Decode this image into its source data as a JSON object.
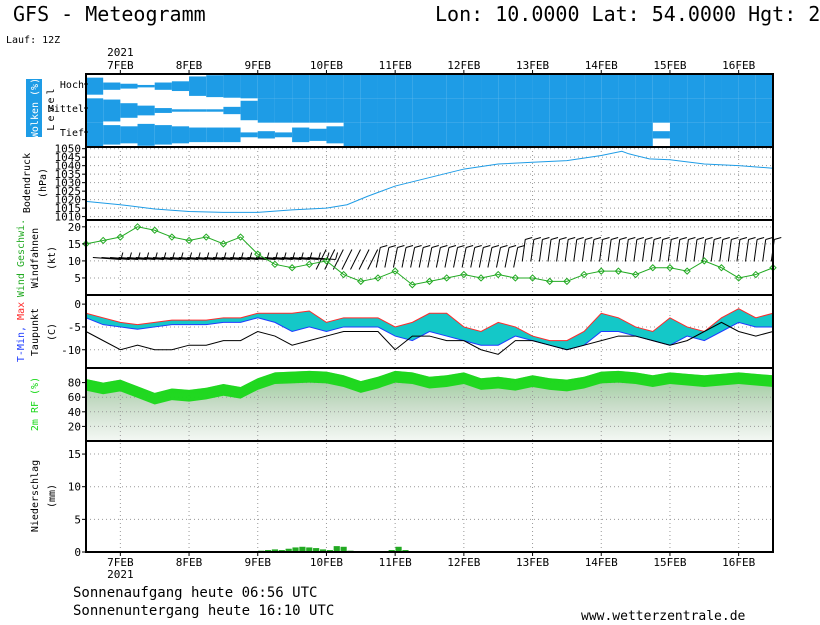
{
  "header": {
    "title": "GFS - Meteogramm",
    "location": "Lon: 10.0000 Lat: 54.0000 Hgt: 2",
    "run": "Lauf: 12Z"
  },
  "year": "2021",
  "date_labels": [
    "7FEB",
    "8FEB",
    "9FEB",
    "10FEB",
    "11FEB",
    "12FEB",
    "13FEB",
    "14FEB",
    "15FEB",
    "16FEB"
  ],
  "footer": {
    "sunrise": "Sonnenaufgang heute 06:56 UTC",
    "sunset": "Sonnenuntergang heute 16:10 UTC",
    "website": "www.wetterzentrale.de"
  },
  "colors": {
    "cloud": "#1e9ce6",
    "pressure": "#1e9ce6",
    "wind": "#22aa22",
    "tmin": "#1e3cff",
    "tmax": "#ff2a2a",
    "temp_band": "#14c8c8",
    "humidity": "#18d818",
    "precip": "#22aa22",
    "grid": "#999999"
  },
  "chart_data": [
    {
      "type": "heatmap",
      "name": "clouds",
      "ylabel": "Wolken (%)",
      "ylabel2": "Level",
      "levels": [
        "Hoch",
        "Mittel",
        "Tief"
      ],
      "x_start_day": 6.5,
      "step_hours": 6,
      "coverage_pct": {
        "Hoch": [
          70,
          30,
          20,
          10,
          30,
          40,
          80,
          90,
          95,
          100,
          100,
          100,
          100,
          100,
          100,
          100,
          100,
          100,
          100,
          100,
          100,
          100,
          100,
          100,
          100,
          100,
          100,
          100,
          100,
          100,
          100,
          100,
          100,
          100,
          100,
          100,
          100,
          100,
          100,
          100
        ],
        "Mittel": [
          100,
          90,
          60,
          40,
          20,
          10,
          10,
          10,
          30,
          80,
          100,
          100,
          100,
          100,
          100,
          100,
          100,
          100,
          100,
          100,
          100,
          100,
          100,
          100,
          100,
          100,
          100,
          100,
          100,
          100,
          100,
          100,
          100,
          100,
          100,
          100,
          100,
          100,
          100,
          100
        ],
        "Tief": [
          100,
          80,
          70,
          90,
          80,
          70,
          60,
          60,
          60,
          20,
          30,
          20,
          60,
          50,
          70,
          100,
          100,
          100,
          100,
          100,
          100,
          100,
          100,
          100,
          100,
          100,
          100,
          100,
          100,
          100,
          100,
          100,
          100,
          30,
          100,
          100,
          100,
          100,
          100,
          100
        ]
      }
    },
    {
      "type": "line",
      "name": "pressure",
      "ylabel": "Bodendruck",
      "ylabel2": "(hPa)",
      "yticks": [
        1010,
        1015,
        1020,
        1025,
        1030,
        1035,
        1040,
        1045,
        1050
      ],
      "ylim": [
        1008,
        1051
      ],
      "x": [
        6.5,
        7.0,
        7.5,
        8.0,
        8.5,
        9.0,
        9.5,
        10.0,
        10.3,
        10.6,
        11.0,
        11.5,
        12.0,
        12.5,
        13.0,
        13.5,
        14.0,
        14.3,
        14.4,
        14.7,
        15.0,
        15.5,
        16.0,
        16.5
      ],
      "values": [
        1019,
        1017,
        1014.5,
        1013,
        1012.5,
        1012.5,
        1014,
        1015,
        1017,
        1022,
        1028,
        1033,
        1038,
        1041,
        1042,
        1043,
        1046,
        1048.5,
        1047,
        1044,
        1043.5,
        1041,
        1040,
        1038.5
      ]
    },
    {
      "type": "line",
      "name": "wind",
      "ylabel": "Wind Geschwi.",
      "ylabel2": "Windfahnen",
      "ylabel3": "(kt)",
      "yticks": [
        5,
        10,
        15,
        20
      ],
      "ylim": [
        0,
        22
      ],
      "x": [
        6.5,
        6.75,
        7.0,
        7.25,
        7.5,
        7.75,
        8.0,
        8.25,
        8.5,
        8.75,
        9.0,
        9.25,
        9.5,
        9.75,
        10.0,
        10.25,
        10.5,
        10.75,
        11.0,
        11.25,
        11.5,
        11.75,
        12.0,
        12.25,
        12.5,
        12.75,
        13.0,
        13.25,
        13.5,
        13.75,
        14.0,
        14.25,
        14.5,
        14.75,
        15.0,
        15.25,
        15.5,
        15.75,
        16.0,
        16.25,
        16.5
      ],
      "values": [
        15,
        16,
        17,
        20,
        19,
        17,
        16,
        17,
        15,
        17,
        12,
        9,
        8,
        9,
        10,
        6,
        4,
        5,
        7,
        3,
        4,
        5,
        6,
        5,
        6,
        5,
        5,
        4,
        4,
        6,
        7,
        7,
        6,
        8,
        8,
        7,
        10,
        8,
        5,
        6,
        8
      ],
      "barb_y": 11
    },
    {
      "type": "line",
      "name": "temperature",
      "ylabel": "T-Min, Max",
      "ylabel2": "Taupunkt",
      "ylabel3": "(C)",
      "yticks": [
        -10,
        -5,
        0
      ],
      "ylim": [
        -14,
        2
      ],
      "x": [
        6.5,
        6.75,
        7.0,
        7.25,
        7.5,
        7.75,
        8.0,
        8.25,
        8.5,
        8.75,
        9.0,
        9.25,
        9.5,
        9.75,
        10.0,
        10.25,
        10.5,
        10.75,
        11.0,
        11.25,
        11.5,
        11.75,
        12.0,
        12.25,
        12.5,
        12.75,
        13.0,
        13.25,
        13.5,
        13.75,
        14.0,
        14.25,
        14.5,
        14.75,
        15.0,
        15.25,
        15.5,
        15.75,
        16.0,
        16.25,
        16.5
      ],
      "tmax": [
        -2,
        -3,
        -4,
        -4.5,
        -4,
        -3.5,
        -3.5,
        -3.5,
        -3,
        -3,
        -2,
        -2,
        -2,
        -1.5,
        -4,
        -3,
        -3,
        -3,
        -5,
        -4,
        -2,
        -2,
        -5,
        -6,
        -4,
        -5,
        -7,
        -8,
        -8,
        -6,
        -2,
        -3,
        -5,
        -6,
        -3,
        -5,
        -6,
        -3,
        -1,
        -3,
        -2
      ],
      "tmin": [
        -3,
        -4.5,
        -5,
        -5.5,
        -5,
        -4.5,
        -4.5,
        -4.5,
        -4,
        -4,
        -3,
        -4,
        -6,
        -5,
        -6,
        -5,
        -5,
        -5,
        -7,
        -8,
        -6,
        -7,
        -8,
        -9,
        -9,
        -7,
        -8,
        -9,
        -10,
        -9,
        -6,
        -6,
        -7,
        -8,
        -9,
        -7,
        -8,
        -6,
        -4,
        -5,
        -5
      ],
      "dewpoint": [
        -6,
        -8,
        -10,
        -9,
        -10,
        -10,
        -9,
        -9,
        -8,
        -8,
        -6,
        -7,
        -9,
        -8,
        -7,
        -6,
        -6,
        -6,
        -10,
        -7,
        -7,
        -8,
        -8,
        -10,
        -11,
        -8,
        -8,
        -9,
        -10,
        -9,
        -8,
        -7,
        -7,
        -8,
        -9,
        -8,
        -6,
        -4,
        -6,
        -7,
        -6
      ]
    },
    {
      "type": "area",
      "name": "humidity",
      "ylabel": "2m RF (%)",
      "yticks": [
        20,
        40,
        60,
        80
      ],
      "ylim": [
        0,
        100
      ],
      "x": [
        6.5,
        6.75,
        7.0,
        7.25,
        7.5,
        7.75,
        8.0,
        8.25,
        8.5,
        8.75,
        9.0,
        9.25,
        9.5,
        9.75,
        10.0,
        10.25,
        10.5,
        10.75,
        11.0,
        11.25,
        11.5,
        11.75,
        12.0,
        12.25,
        12.5,
        12.75,
        13.0,
        13.25,
        13.5,
        13.75,
        14.0,
        14.25,
        14.5,
        14.75,
        15.0,
        15.25,
        15.5,
        15.75,
        16.0,
        16.25,
        16.5
      ],
      "values": [
        85,
        80,
        84,
        75,
        66,
        72,
        70,
        73,
        78,
        74,
        86,
        94,
        95,
        96,
        95,
        90,
        82,
        88,
        96,
        94,
        88,
        90,
        94,
        86,
        88,
        85,
        90,
        86,
        84,
        88,
        95,
        96,
        94,
        90,
        94,
        92,
        90,
        92,
        94,
        92,
        90
      ]
    },
    {
      "type": "bar",
      "name": "precipitation",
      "ylabel": "Niederschlag",
      "ylabel2": "(mm)",
      "yticks": [
        0,
        5,
        10,
        15
      ],
      "ylim": [
        0,
        17
      ],
      "x": [
        9.05,
        9.15,
        9.25,
        9.35,
        9.45,
        9.55,
        9.65,
        9.75,
        9.85,
        9.95,
        10.05,
        10.15,
        10.25,
        10.35,
        10.95,
        11.05,
        11.15
      ],
      "values": [
        0.2,
        0.3,
        0.4,
        0.3,
        0.5,
        0.7,
        0.8,
        0.7,
        0.6,
        0.4,
        0.3,
        0.9,
        0.8,
        0.2,
        0.3,
        0.8,
        0.3
      ]
    }
  ]
}
